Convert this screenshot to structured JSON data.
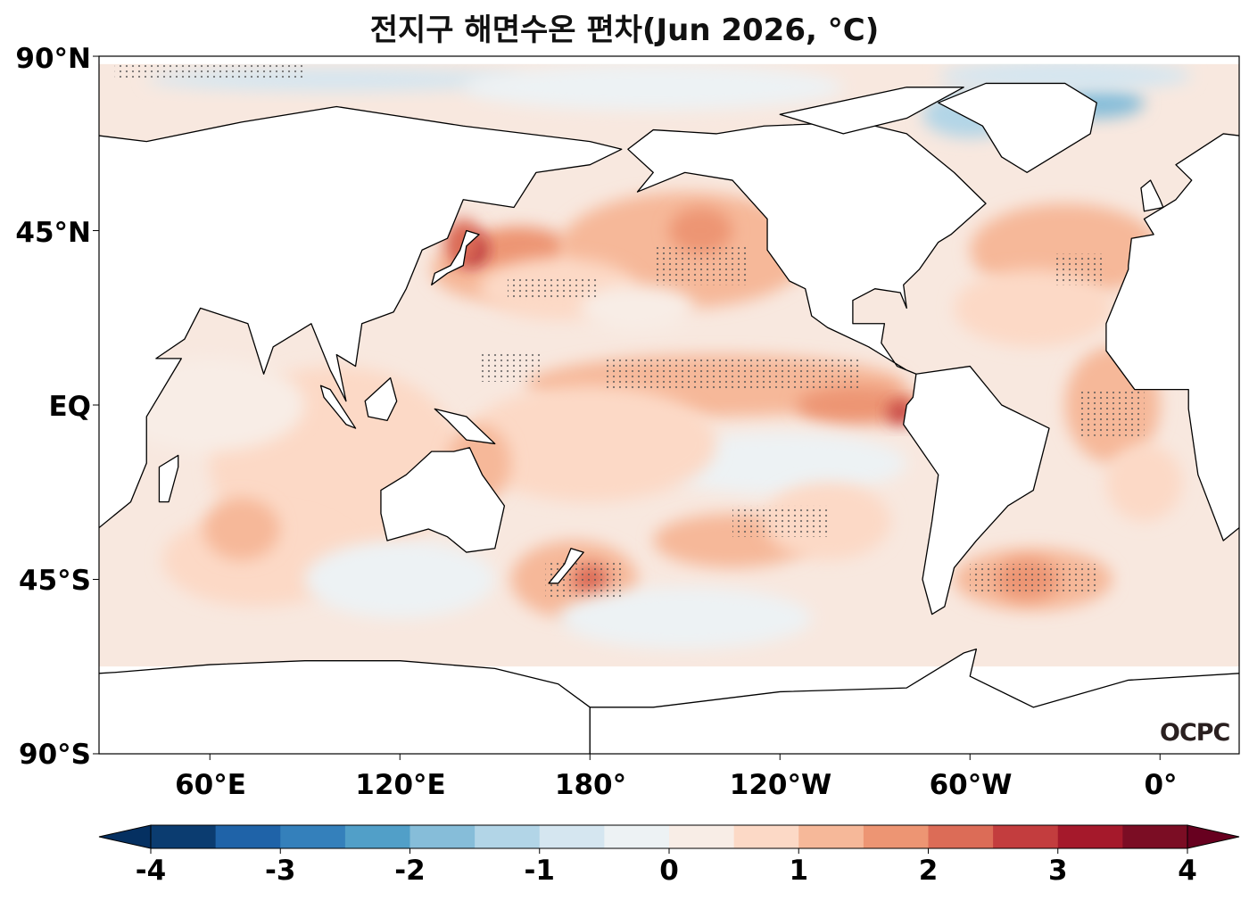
{
  "title": "전지구 해면수온 편차(Jun 2026, °C)",
  "y_axis_labels": [
    "90°N",
    "45°N",
    "EQ",
    "45°S",
    "90°S"
  ],
  "x_axis_labels": [
    "60°E",
    "120°E",
    "180°",
    "120°W",
    "60°W",
    "0°"
  ],
  "logo": "OCPC",
  "colorbar": {
    "ticks": [
      "-4",
      "-3",
      "-2",
      "-1",
      "0",
      "1",
      "2",
      "3",
      "4"
    ],
    "min": -4,
    "max": 4,
    "step": 0.5,
    "colors": [
      "#0b3c70",
      "#1f63a8",
      "#3480bb",
      "#519fc8",
      "#86bdd9",
      "#b2d5e7",
      "#d5e6f0",
      "#edf2f4",
      "#f8ede6",
      "#fcd9c6",
      "#f6b899",
      "#ed9573",
      "#dc6c57",
      "#c33d3e",
      "#a5192b",
      "#7b0d24"
    ],
    "under_color": "#053061",
    "over_color": "#67001f"
  }
}
